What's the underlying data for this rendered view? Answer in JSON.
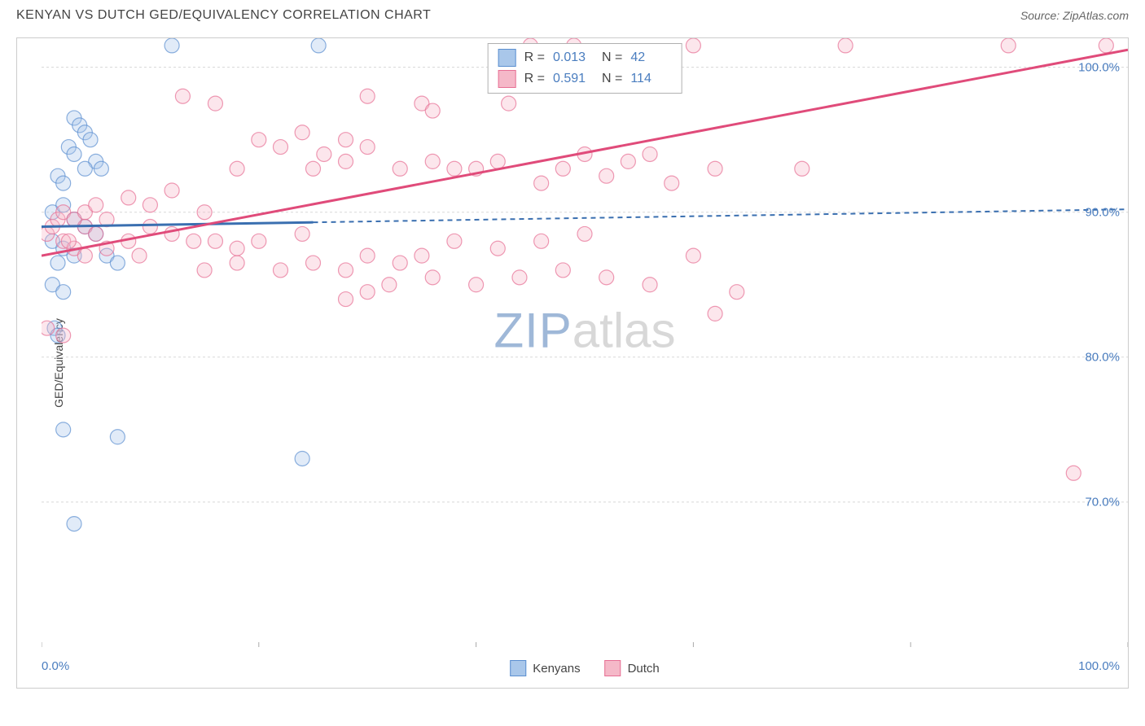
{
  "title": "KENYAN VS DUTCH GED/EQUIVALENCY CORRELATION CHART",
  "source": "Source: ZipAtlas.com",
  "y_axis_label": "GED/Equivalency",
  "watermark_a": "ZIP",
  "watermark_b": "atlas",
  "chart": {
    "type": "scatter",
    "xlim": [
      0,
      100
    ],
    "ylim": [
      60,
      102
    ],
    "y_ticks": [
      70,
      80,
      90,
      100
    ],
    "y_tick_labels": [
      "70.0%",
      "80.0%",
      "90.0%",
      "100.0%"
    ],
    "x_min_label": "0.0%",
    "x_max_label": "100.0%",
    "x_ticks": [
      0,
      20,
      40,
      60,
      80,
      100
    ],
    "grid_color": "#d8d8d8",
    "background_color": "#ffffff",
    "marker_radius": 9,
    "marker_opacity": 0.35,
    "series": [
      {
        "name": "Kenyans",
        "color_fill": "#a9c7ea",
        "color_stroke": "#5b8fd0",
        "trend_color": "#3a6fb0",
        "trend": {
          "y_at_x0": 89.0,
          "y_at_x100": 90.2,
          "solid_until_x": 25
        },
        "stats": {
          "R": "0.013",
          "N": "42"
        },
        "points": [
          [
            12,
            101.5
          ],
          [
            25.5,
            101.5
          ],
          [
            3,
            96.5
          ],
          [
            3.5,
            96
          ],
          [
            4,
            95.5
          ],
          [
            4.5,
            95
          ],
          [
            2.5,
            94.5
          ],
          [
            3,
            94
          ],
          [
            5,
            93.5
          ],
          [
            5.5,
            93
          ],
          [
            1.5,
            92.5
          ],
          [
            2,
            92
          ],
          [
            4,
            93
          ],
          [
            1,
            90
          ],
          [
            2,
            90.5
          ],
          [
            3,
            89.5
          ],
          [
            4,
            89
          ],
          [
            5,
            88.5
          ],
          [
            1,
            88
          ],
          [
            2,
            87.5
          ],
          [
            3,
            87
          ],
          [
            1.5,
            86.5
          ],
          [
            6,
            87
          ],
          [
            7,
            86.5
          ],
          [
            1,
            85
          ],
          [
            2,
            84.5
          ],
          [
            1.2,
            82
          ],
          [
            1.5,
            81.5
          ],
          [
            2,
            75
          ],
          [
            7,
            74.5
          ],
          [
            24,
            73
          ],
          [
            3,
            68.5
          ]
        ]
      },
      {
        "name": "Dutch",
        "color_fill": "#f5b8c8",
        "color_stroke": "#e76f94",
        "trend_color": "#e04b7a",
        "trend": {
          "y_at_x0": 87.0,
          "y_at_x100": 101.2,
          "solid_until_x": 100
        },
        "stats": {
          "R": "0.591",
          "N": "114"
        },
        "points": [
          [
            45,
            101.5
          ],
          [
            49,
            101.5
          ],
          [
            60,
            101.5
          ],
          [
            74,
            101.5
          ],
          [
            89,
            101.5
          ],
          [
            98,
            101.5
          ],
          [
            13,
            98
          ],
          [
            16,
            97.5
          ],
          [
            30,
            98
          ],
          [
            35,
            97.5
          ],
          [
            36,
            97
          ],
          [
            43,
            97.5
          ],
          [
            20,
            95
          ],
          [
            22,
            94.5
          ],
          [
            24,
            95.5
          ],
          [
            26,
            94
          ],
          [
            28,
            95
          ],
          [
            30,
            94.5
          ],
          [
            18,
            93
          ],
          [
            25,
            93
          ],
          [
            28,
            93.5
          ],
          [
            33,
            93
          ],
          [
            36,
            93.5
          ],
          [
            38,
            93
          ],
          [
            40,
            93
          ],
          [
            42,
            93.5
          ],
          [
            48,
            93
          ],
          [
            50,
            94
          ],
          [
            54,
            93.5
          ],
          [
            56,
            94
          ],
          [
            46,
            92
          ],
          [
            52,
            92.5
          ],
          [
            58,
            92
          ],
          [
            62,
            93
          ],
          [
            70,
            93
          ],
          [
            8,
            91
          ],
          [
            10,
            90.5
          ],
          [
            12,
            91.5
          ],
          [
            15,
            90
          ],
          [
            4,
            89
          ],
          [
            5,
            88.5
          ],
          [
            6,
            89.5
          ],
          [
            8,
            88
          ],
          [
            10,
            89
          ],
          [
            12,
            88.5
          ],
          [
            14,
            88
          ],
          [
            2,
            88
          ],
          [
            3,
            87.5
          ],
          [
            4,
            87
          ],
          [
            6,
            87.5
          ],
          [
            9,
            87
          ],
          [
            16,
            88
          ],
          [
            18,
            87.5
          ],
          [
            20,
            88
          ],
          [
            24,
            88.5
          ],
          [
            15,
            86
          ],
          [
            18,
            86.5
          ],
          [
            22,
            86
          ],
          [
            25,
            86.5
          ],
          [
            28,
            86
          ],
          [
            30,
            87
          ],
          [
            33,
            86.5
          ],
          [
            35,
            87
          ],
          [
            32,
            85
          ],
          [
            36,
            85.5
          ],
          [
            40,
            85
          ],
          [
            44,
            85.5
          ],
          [
            38,
            88
          ],
          [
            42,
            87.5
          ],
          [
            46,
            88
          ],
          [
            50,
            88.5
          ],
          [
            28,
            84
          ],
          [
            30,
            84.5
          ],
          [
            48,
            86
          ],
          [
            52,
            85.5
          ],
          [
            56,
            85
          ],
          [
            60,
            87
          ],
          [
            64,
            84.5
          ],
          [
            0.5,
            82
          ],
          [
            2,
            81.5
          ],
          [
            0.5,
            88.5
          ],
          [
            1,
            89
          ],
          [
            1.5,
            89.5
          ],
          [
            2,
            90
          ],
          [
            2.5,
            88
          ],
          [
            3,
            89.5
          ],
          [
            4,
            90
          ],
          [
            5,
            90.5
          ],
          [
            62,
            83
          ],
          [
            95,
            72
          ]
        ]
      }
    ]
  },
  "bottom_legend": [
    {
      "label": "Kenyans",
      "fill": "#a9c7ea",
      "stroke": "#5b8fd0"
    },
    {
      "label": "Dutch",
      "fill": "#f5b8c8",
      "stroke": "#e76f94"
    }
  ]
}
